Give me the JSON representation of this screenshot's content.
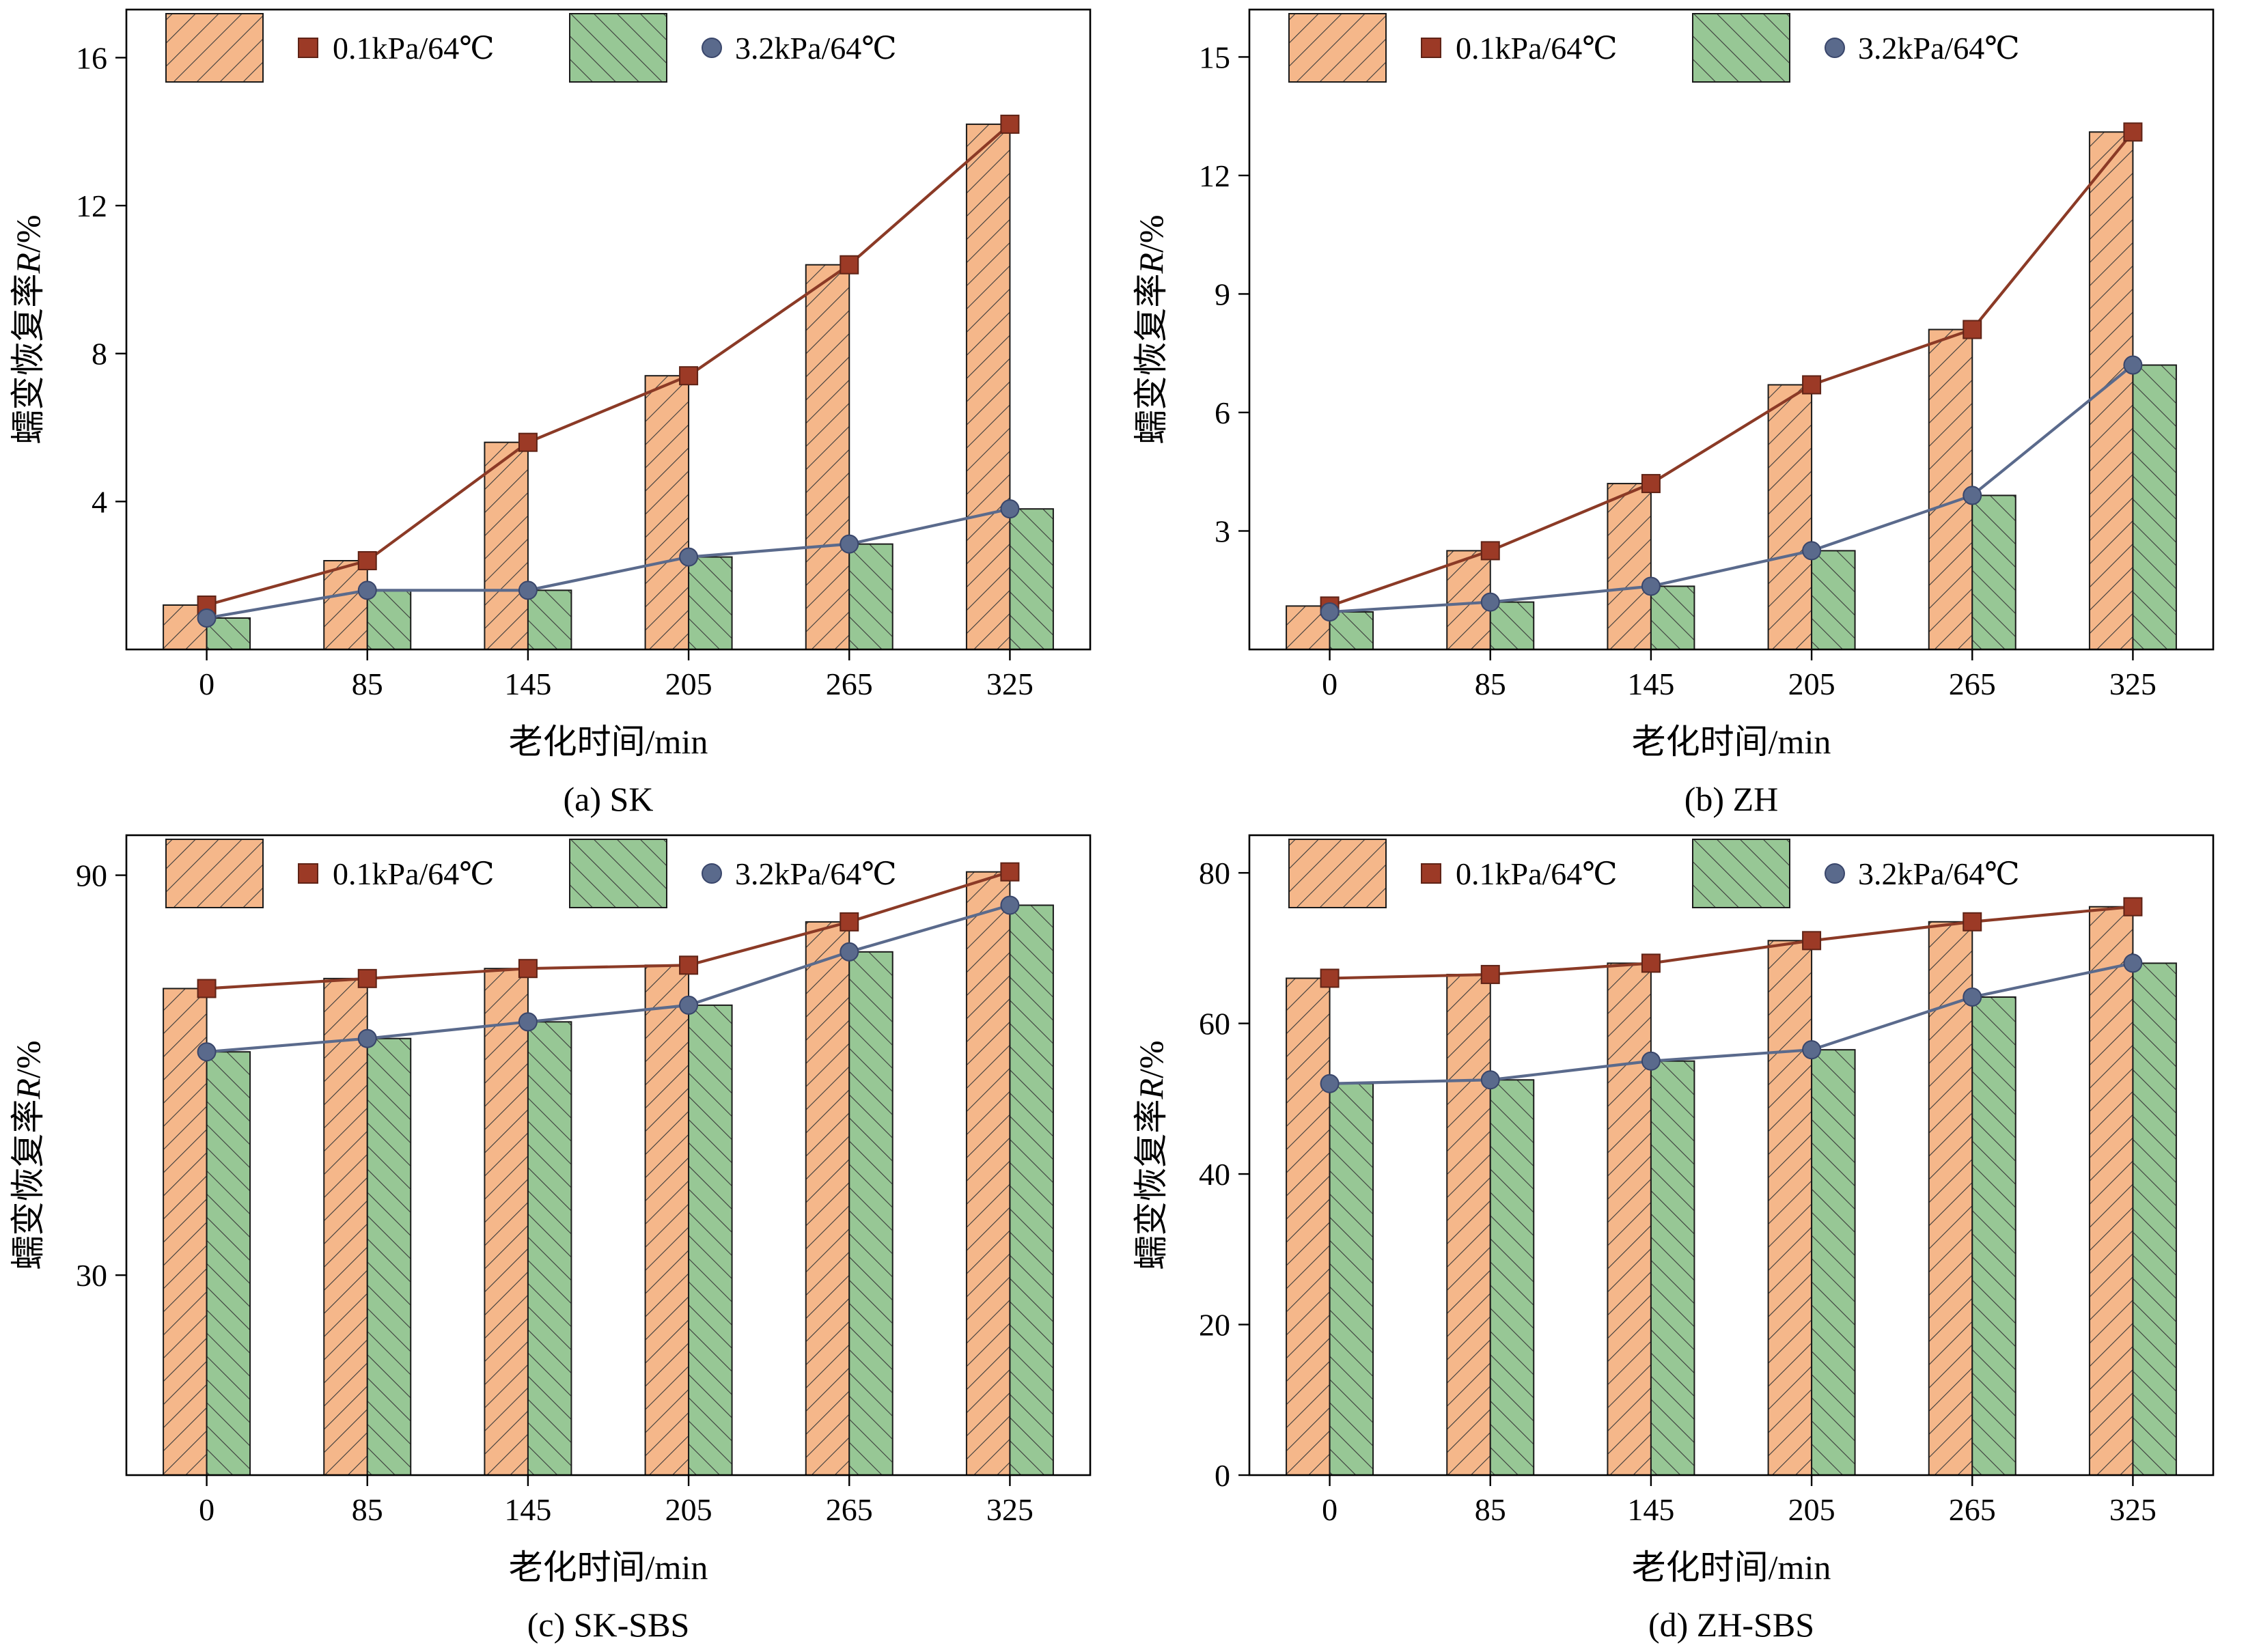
{
  "figure": {
    "legend": {
      "series1_label": "0.1kPa/64℃",
      "series2_label": "3.2kPa/64℃"
    },
    "colors": {
      "bar1_fill": "#F5B78A",
      "bar2_fill": "#97C795",
      "line1": "#8B3A26",
      "line2": "#5A6A8C",
      "marker1": "#9C3A26",
      "marker1_edge": "#5F2316",
      "marker2": "#5A6A8C",
      "marker2_edge": "#39466B",
      "hatch": "#3B3B3B",
      "axis": "#000000"
    }
  },
  "chart_data": [
    {
      "type": "bar",
      "caption": "(a) SK",
      "xlabel": "老化时间/min",
      "ylabel": "蠕变恢复率R/%",
      "categories": [
        "0",
        "85",
        "145",
        "205",
        "265",
        "325"
      ],
      "yticks": [
        4,
        8,
        12,
        16
      ],
      "ylim": [
        0,
        17.3
      ],
      "legend": [
        "0.1kPa/64℃",
        "3.2kPa/64℃"
      ],
      "series": [
        {
          "name": "0.1kPa/64℃",
          "marker": "square",
          "values": [
            1.2,
            2.4,
            5.6,
            7.4,
            10.4,
            14.2
          ]
        },
        {
          "name": "3.2kPa/64℃",
          "marker": "circle",
          "values": [
            0.85,
            1.6,
            1.6,
            2.5,
            2.85,
            3.8
          ]
        }
      ]
    },
    {
      "type": "bar",
      "caption": "(b) ZH",
      "xlabel": "老化时间/min",
      "ylabel": "蠕变恢复率R/%",
      "categories": [
        "0",
        "85",
        "145",
        "205",
        "265",
        "325"
      ],
      "yticks": [
        3,
        6,
        9,
        12,
        15
      ],
      "ylim": [
        0,
        16.2
      ],
      "legend": [
        "0.1kPa/64℃",
        "3.2kPa/64℃"
      ],
      "series": [
        {
          "name": "0.1kPa/64℃",
          "marker": "square",
          "values": [
            1.1,
            2.5,
            4.2,
            6.7,
            8.1,
            13.1
          ]
        },
        {
          "name": "3.2kPa/64℃",
          "marker": "circle",
          "values": [
            0.95,
            1.2,
            1.6,
            2.5,
            3.9,
            7.2
          ]
        }
      ]
    },
    {
      "type": "bar",
      "caption": "(c) SK-SBS",
      "xlabel": "老化时间/min",
      "ylabel": "蠕变恢复率R/%",
      "categories": [
        "0",
        "85",
        "145",
        "205",
        "265",
        "325"
      ],
      "yticks": [
        30,
        90
      ],
      "ylim": [
        0,
        96
      ],
      "legend": [
        "0.1kPa/64℃",
        "3.2kPa/64℃"
      ],
      "series": [
        {
          "name": "0.1kPa/64℃",
          "marker": "square",
          "values": [
            73,
            74.5,
            76,
            76.5,
            83,
            90.5
          ]
        },
        {
          "name": "3.2kPa/64℃",
          "marker": "circle",
          "values": [
            63.5,
            65.5,
            68,
            70.5,
            78.5,
            85.5
          ]
        }
      ]
    },
    {
      "type": "bar",
      "caption": "(d) ZH-SBS",
      "xlabel": "老化时间/min",
      "ylabel": "蠕变恢复率R/%",
      "categories": [
        "0",
        "85",
        "145",
        "205",
        "265",
        "325"
      ],
      "yticks": [
        0,
        20,
        40,
        60,
        80
      ],
      "ylim": [
        0,
        85
      ],
      "legend": [
        "0.1kPa/64℃",
        "3.2kPa/64℃"
      ],
      "series": [
        {
          "name": "0.1kPa/64℃",
          "marker": "square",
          "values": [
            66,
            66.5,
            68,
            71,
            73.5,
            75.5
          ]
        },
        {
          "name": "3.2kPa/64℃",
          "marker": "circle",
          "values": [
            52,
            52.5,
            55,
            56.5,
            63.5,
            68
          ]
        }
      ]
    }
  ]
}
